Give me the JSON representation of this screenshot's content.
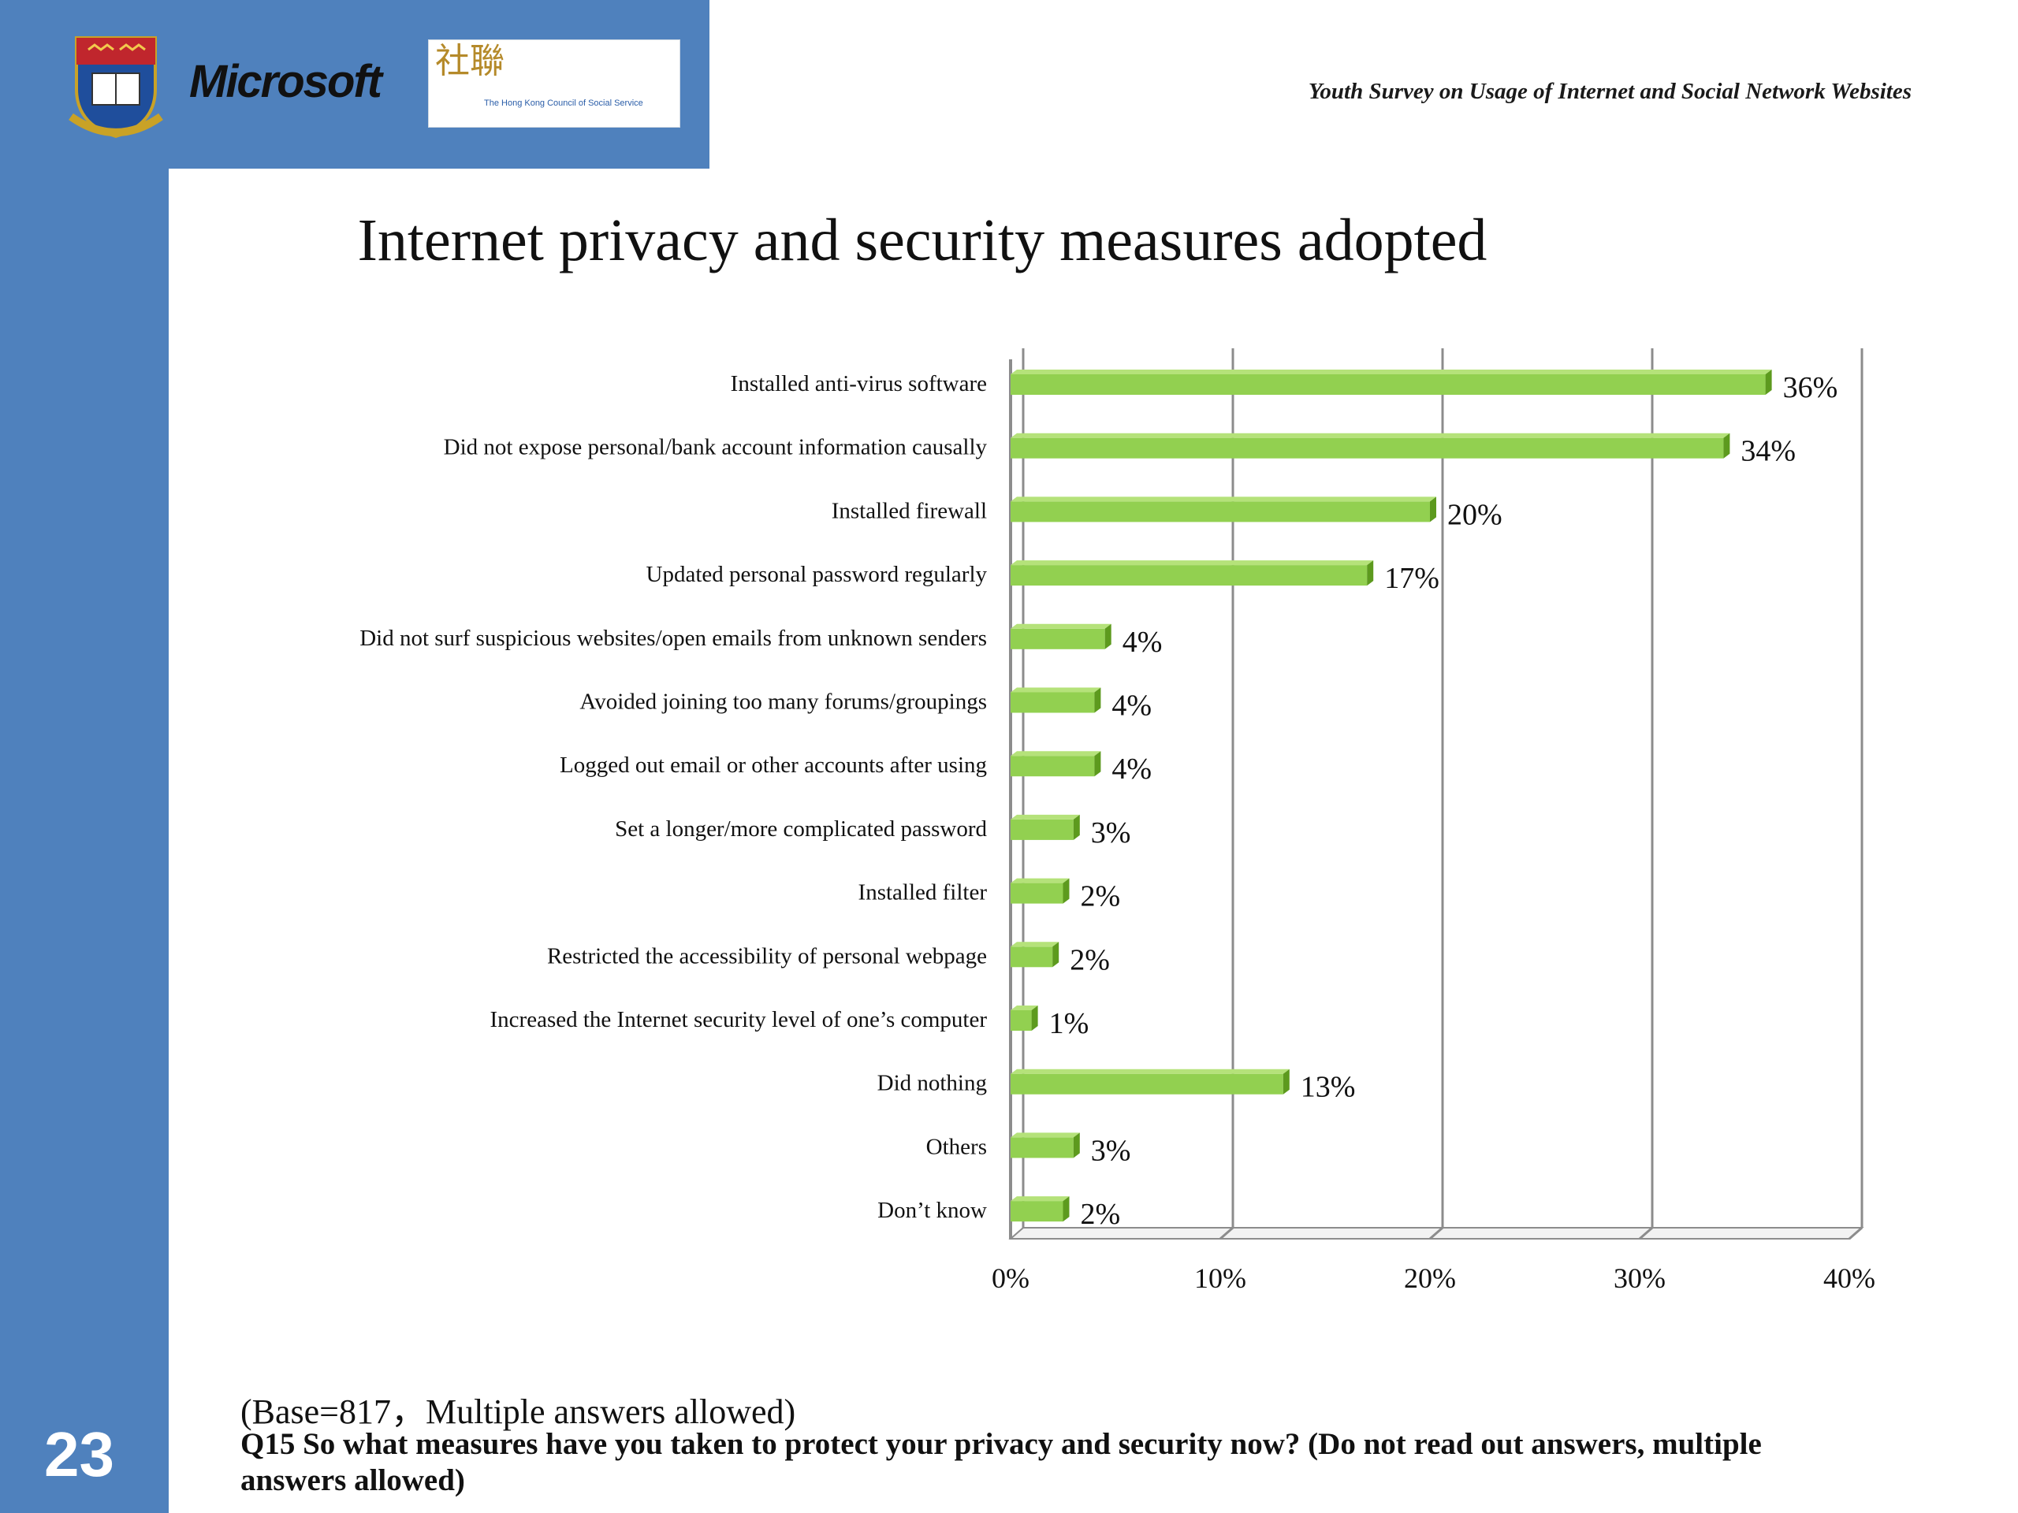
{
  "header": {
    "brand": "Microsoft",
    "partner_glyph": "社聯",
    "partner_org": "The Hong Kong Council of Social Service",
    "survey_title": "Youth Survey on Usage of Internet and Social Network Websites"
  },
  "slide": {
    "title": "Internet privacy and security measures adopted",
    "page_number": "23",
    "base_note": "(Base=817，Multiple answers allowed)",
    "question": "Q15   So what measures have you taken to protect your privacy and security now? (Do not read out answers, multiple answers allowed)"
  },
  "colors": {
    "band": "#4f81bd",
    "bar": "#92d050",
    "bar_dark": "#5d9a1e",
    "grid": "#8c8c8c"
  },
  "chart_data": {
    "type": "bar",
    "orientation": "horizontal",
    "categories": [
      "Installed anti-virus software",
      "Did not expose personal/bank account information causally",
      "Installed firewall",
      "Updated personal password regularly",
      "Did not surf suspicious websites/open emails from unknown senders",
      "Avoided joining too many forums/groupings",
      "Logged out email or other accounts after using",
      "Set a longer/more complicated password",
      "Installed filter",
      "Restricted the accessibility of personal webpage",
      "Increased the Internet security level of one’s computer",
      "Did nothing",
      "Others",
      "Don’t know"
    ],
    "values": [
      36,
      34,
      20,
      17,
      4.5,
      4,
      4,
      3,
      2.5,
      2,
      1,
      13,
      3,
      2.5
    ],
    "data_labels": [
      "36%",
      "34%",
      "20%",
      "17%",
      "4%",
      "4%",
      "4%",
      "3%",
      "2%",
      "2%",
      "1%",
      "13%",
      "3%",
      "2%"
    ],
    "xlim": [
      0,
      40
    ],
    "xticks": [
      "0%",
      "10%",
      "20%",
      "30%",
      "40%"
    ],
    "grid": true,
    "legend": "none"
  }
}
